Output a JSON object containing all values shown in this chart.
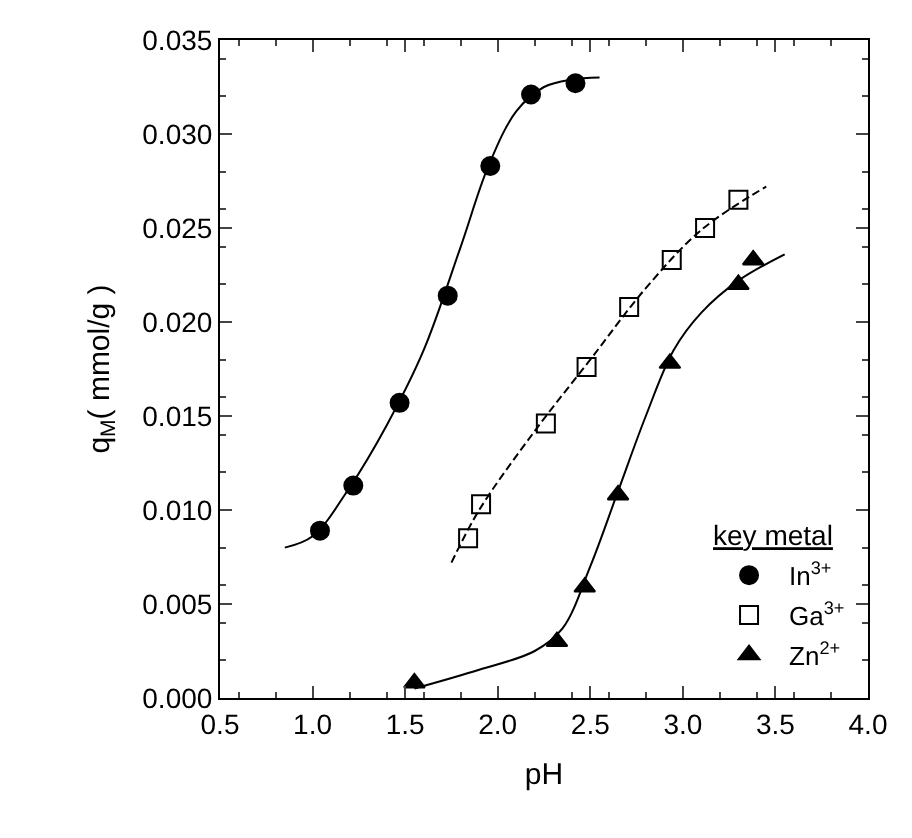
{
  "chart_data": {
    "type": "scatter",
    "xlabel": "pH",
    "ylabel": "q$_{M}$( mmol/g )",
    "legend_title": "key metal",
    "legend": "bottom right",
    "grid": false,
    "xlim": [
      0.5,
      4.0
    ],
    "xticks": [
      {
        "value": 0.5,
        "label": "0.5"
      },
      {
        "value": 1.0,
        "label": "1.0"
      },
      {
        "value": 1.5,
        "label": "1.5"
      },
      {
        "value": 2.0,
        "label": "2.0"
      },
      {
        "value": 2.5,
        "label": "2.5"
      },
      {
        "value": 3.0,
        "label": "3.0"
      },
      {
        "value": 3.5,
        "label": "3.5"
      },
      {
        "value": 4.0,
        "label": "4.0"
      }
    ],
    "ylim": [
      0,
      0.035
    ],
    "yticks": [
      {
        "value": 0,
        "label": "0.000"
      },
      {
        "value": 0.005,
        "label": "0.005"
      },
      {
        "value": 0.01,
        "label": "0.010"
      },
      {
        "value": 0.015,
        "label": "0.015"
      },
      {
        "value": 0.02,
        "label": "0.020"
      },
      {
        "value": 0.025,
        "label": "0.025"
      },
      {
        "value": 0.03,
        "label": "0.030"
      },
      {
        "value": 0.035,
        "label": "0.035"
      }
    ],
    "series": [
      {
        "type": "line",
        "color": "#000000",
        "marker": "none",
        "line_style": "solid",
        "x": [
          0.85,
          1.0,
          1.2,
          1.4,
          1.6,
          1.8,
          1.95,
          2.1,
          2.25,
          2.4,
          2.55
        ],
        "values": [
          0.008,
          0.0086,
          0.0112,
          0.0145,
          0.0185,
          0.024,
          0.0283,
          0.0312,
          0.0325,
          0.0329,
          0.033
        ]
      },
      {
        "type": "line",
        "color": "#000000",
        "marker": "none",
        "line_style": "dashed",
        "x": [
          1.75,
          1.9,
          2.2,
          2.5,
          2.8,
          3.1,
          3.45
        ],
        "values": [
          0.0072,
          0.01,
          0.0142,
          0.018,
          0.0218,
          0.0249,
          0.0272
        ]
      },
      {
        "type": "line",
        "color": "#000000",
        "marker": "none",
        "line_style": "solid",
        "x": [
          1.55,
          1.9,
          2.2,
          2.35,
          2.5,
          2.65,
          2.8,
          2.95,
          3.1,
          3.3,
          3.55
        ],
        "values": [
          0.0005,
          0.0015,
          0.0025,
          0.0037,
          0.007,
          0.011,
          0.015,
          0.0185,
          0.0205,
          0.0222,
          0.0236
        ]
      },
      {
        "name": "In$^{3+}$",
        "color": "#000000",
        "marker": "circle",
        "x": [
          1.04,
          1.22,
          1.47,
          1.73,
          1.96,
          2.18,
          2.42
        ],
        "values": [
          0.0089,
          0.0113,
          0.0157,
          0.0214,
          0.0283,
          0.0321,
          0.0327
        ]
      },
      {
        "name": "Ga$^{3+}$",
        "color": "#000000",
        "marker": "square-open",
        "x": [
          1.84,
          1.91,
          2.26,
          2.48,
          2.71,
          2.94,
          3.12,
          3.3
        ],
        "values": [
          0.0085,
          0.0103,
          0.0146,
          0.0176,
          0.0208,
          0.0233,
          0.025,
          0.0265
        ]
      },
      {
        "name": "Zn$^{2+}$",
        "color": "#000000",
        "marker": "triangle",
        "x": [
          1.55,
          2.32,
          2.47,
          2.65,
          2.93,
          3.3,
          3.38
        ],
        "values": [
          0.0008,
          0.003,
          0.0059,
          0.0108,
          0.0178,
          0.022,
          0.0233
        ]
      }
    ]
  }
}
